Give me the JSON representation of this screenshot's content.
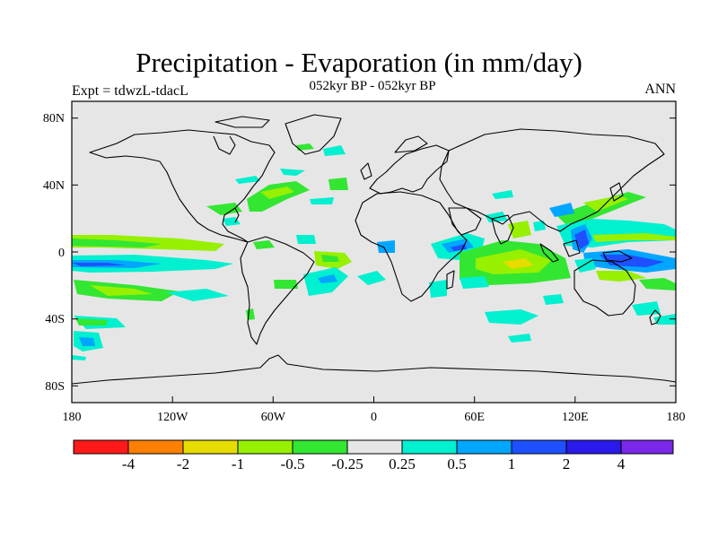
{
  "header": {
    "title": "Precipitation - Evaporation (in mm/day)",
    "subtitle": "052kyr BP - 052kyr BP",
    "left_label": "Expt = tdwzL-tdacL",
    "right_label": "ANN"
  },
  "axes": {
    "lat_ticks": [
      "80N",
      "40N",
      "0",
      "40S",
      "80S"
    ],
    "lon_ticks": [
      "180",
      "120W",
      "60W",
      "0",
      "60E",
      "120E",
      "180"
    ]
  },
  "colorbar": {
    "colors": [
      "#ff1a1a",
      "#ff8000",
      "#e6dc00",
      "#96f000",
      "#32e632",
      "#e6e6e6",
      "#00f0d0",
      "#00a6ff",
      "#1e50ff",
      "#2a1aeb",
      "#7a28ea"
    ],
    "labels": [
      "-4",
      "-2",
      "-1",
      "-0.5",
      "-0.25",
      "0.25",
      "0.5",
      "1",
      "2",
      "4"
    ]
  },
  "map": {
    "background_color": "#e6e6e6",
    "coastline_color": "#000000"
  }
}
